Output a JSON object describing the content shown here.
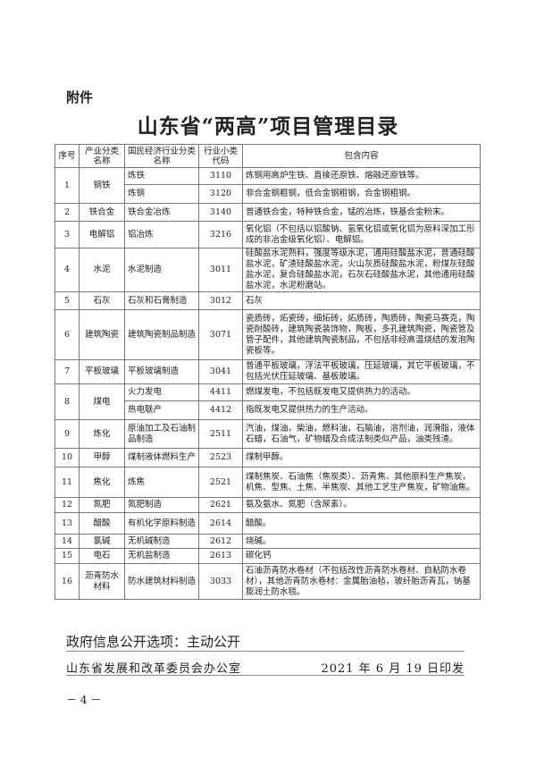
{
  "attachment_label": "附件",
  "title": "山东省“两高”项目管理目录",
  "table": {
    "headers": [
      "序号",
      "产业分类名称",
      "国民经济行业分类名称",
      "行业小类代码",
      "包含内容"
    ],
    "rows": [
      {
        "no": "1",
        "industry": "钢铁",
        "cls": "炼铁",
        "code": "3110",
        "content": "炼钢用高炉生铁、直接还原铁、熔融还原铁等。",
        "span": 2,
        "h": 19
      },
      {
        "cls": "炼钢",
        "code": "3120",
        "content": "非合金钢粗钢，低合金钢粗钢，合金钢粗钢。",
        "h": 21
      },
      {
        "no": "2",
        "industry": "铁合金",
        "cls": "铁合金冶炼",
        "code": "3140",
        "content": "普通铁合金，特种铁合金，锰的冶炼，铁基合金粉末。",
        "h": 20
      },
      {
        "no": "3",
        "industry": "电解铝",
        "cls": "铝冶炼",
        "code": "3216",
        "content": "氧化铝（不包括以铝酸钠、氢氧化铝或氧化铝为原料深加工形成的非冶金级氧化铝）、电解铝。",
        "h": 30
      },
      {
        "no": "4",
        "industry": "水泥",
        "cls": "水泥制造",
        "code": "3011",
        "content": "硅酸盐水泥熟料，强度等级水泥，通用硅酸盐水泥，普通硅酸盐水泥，矿渣硅酸盐水泥，火山灰质硅酸盐水泥，粉煤灰硅酸盐水泥，复合硅酸盐水泥，石灰石硅酸盐水泥，其他通用硅酸盐水泥，水泥粉磨站。",
        "h": 45
      },
      {
        "no": "5",
        "industry": "石灰",
        "cls": "石灰和石膏制造",
        "code": "3012",
        "content": "石灰",
        "h": 20
      },
      {
        "no": "6",
        "industry": "建筑陶瓷",
        "cls": "建筑陶瓷制品制造",
        "code": "3071",
        "content": "瓷质砖，炻瓷砖，细炻砖，炻质砖，陶质砖，陶瓷马赛克，陶瓷耐酸砖，建筑陶瓷装饰物，陶板，多孔建筑陶瓷，陶瓷管及管子配件，其他建筑陶瓷制品，不包括非经高温烧结的发泡陶瓷板等。",
        "h": 56
      },
      {
        "no": "7",
        "industry": "平板玻璃",
        "cls": "平板玻璃制造",
        "code": "3041",
        "content": "普通平板玻璃，浮法平板玻璃，压延玻璃，其它平板玻璃，不包括光伏压延玻璃、基板玻璃。",
        "h": 27
      },
      {
        "no": "8",
        "industry": "煤电",
        "cls": "火力发电",
        "code": "4411",
        "content": "燃煤发电，不包括既发电又提供热力的活动。",
        "span": 2,
        "h": 19
      },
      {
        "cls": "热电联产",
        "code": "4412",
        "content": "指既发电又提供热力的生产活动。",
        "h": 21
      },
      {
        "no": "9",
        "industry": "炼化",
        "cls": "原油加工及石油制品制造",
        "code": "2511",
        "content": "汽油，煤油，柴油，燃料油，石脑油，溶剂油，润滑脂，液体石蜡，石油气，矿物蜡及合成法制类似产品，油类残渣。",
        "h": 32
      },
      {
        "no": "10",
        "industry": "甲醇",
        "cls": "煤制液体燃料生产",
        "code": "2523",
        "content": "煤制甲醇。",
        "h": 21
      },
      {
        "no": "11",
        "industry": "焦化",
        "cls": "炼焦",
        "code": "2521",
        "content": "煤制焦炭、石油焦（焦炭类）、沥青焦、其他原料生产焦炭，机焦、型焦、土焦、半焦炭、其他工艺生产焦炭，矿物油焦。",
        "h": 34
      },
      {
        "no": "12",
        "industry": "氮肥",
        "cls": "氮肥制造",
        "code": "2621",
        "content": "氨及氨水、氮肥（含尿素）。",
        "h": 17
      },
      {
        "no": "13",
        "industry": "醋酸",
        "cls": "有机化学原料制造",
        "code": "2614",
        "content": "醋酸。",
        "h": 24
      },
      {
        "no": "14",
        "industry": "氯碱",
        "cls": "无机碱制造",
        "code": "2612",
        "content": "烧碱。",
        "h": 16
      },
      {
        "no": "15",
        "industry": "电石",
        "cls": "无机盐制造",
        "code": "2613",
        "content": "碳化钙",
        "h": 17
      },
      {
        "no": "16",
        "industry": "沥青防水材料",
        "cls": "防水建筑材料制造",
        "code": "3033",
        "content": "石油沥青防水卷材（不包括改性沥青防水卷材、自粘防水卷材），其他沥青防水卷材：金属胎油毡，玻纤胎沥青瓦，钠基膨润土防水毯。",
        "h": 40
      }
    ]
  },
  "footer": {
    "disclosure": "政府信息公开选项：主动公开",
    "issuer": "山东省发展和改革委员会办公室",
    "date": "2021 年 6 月 19 日印发",
    "page_number": "－ 4 －"
  }
}
